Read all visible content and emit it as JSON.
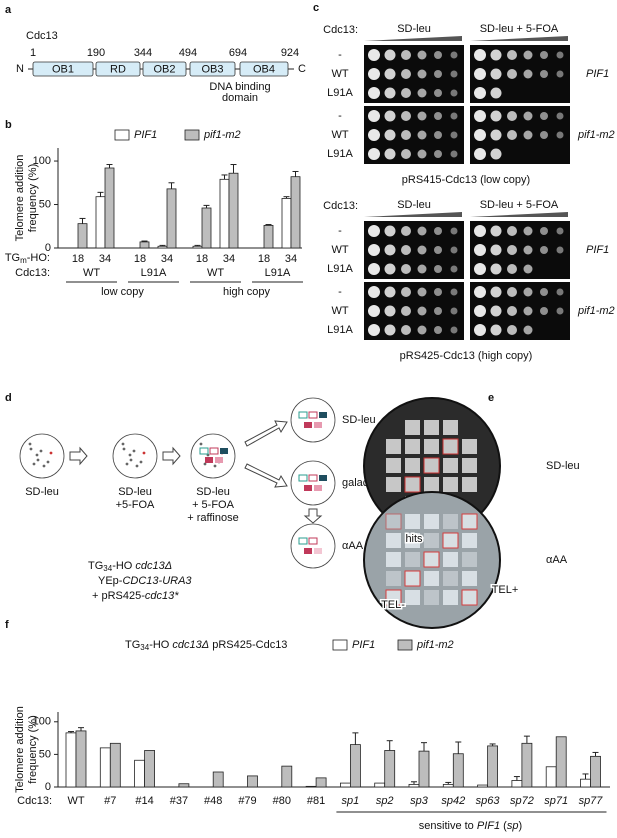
{
  "panels": {
    "a": {
      "letter": "a",
      "protein": "Cdc13",
      "n_term": "N",
      "c_term": "C",
      "positions": [
        1,
        190,
        344,
        494,
        694,
        924
      ],
      "domains": [
        "OB1",
        "RD",
        "OB2",
        "OB3",
        "OB4"
      ],
      "note": [
        "DNA binding",
        "domain"
      ]
    },
    "c": {
      "letter": "c",
      "blocks": [
        {
          "cdc13_label": "Cdc13:",
          "media": [
            "SD-leu",
            "SD-leu + 5-FOA"
          ],
          "rows": [
            "-",
            "WT",
            "L91A",
            "-",
            "WT",
            "L91A"
          ],
          "strains": [
            "PIF1",
            "pif1-m2"
          ],
          "caption": "pRS415-Cdc13 (low copy)"
        },
        {
          "cdc13_label": "Cdc13:",
          "media": [
            "SD-leu",
            "SD-leu + 5-FOA"
          ],
          "rows": [
            "-",
            "WT",
            "L91A",
            "-",
            "WT",
            "L91A"
          ],
          "strains": [
            "PIF1",
            "pif1-m2"
          ],
          "caption": "pRS425-Cdc13 (high copy)"
        }
      ]
    },
    "d": {
      "letter": "d",
      "plates": [
        [
          "SD-leu"
        ],
        [
          "SD-leu",
          "+5-FOA"
        ],
        [
          "SD-leu",
          "+ 5-FOA",
          "+ raffinose"
        ]
      ],
      "replica": [
        "SD-leu",
        "galactose",
        "αAA"
      ],
      "genotype": [
        [
          "TG",
          "34",
          "-HO ",
          "cdc13Δ"
        ],
        [
          "YEp-",
          "CDC13-URA3"
        ],
        [
          "+ pRS425-",
          "cdc13*"
        ]
      ]
    },
    "e": {
      "letter": "e",
      "plates": [
        "SD-leu",
        "αAA"
      ],
      "labels": [
        "hits",
        "TEL-",
        "TEL+"
      ]
    }
  },
  "chart_data": [
    {
      "letter": "b",
      "type": "bar",
      "categories": [
        "18",
        "34",
        "18",
        "34",
        "18",
        "34",
        "18",
        "34"
      ],
      "tg_label": [
        "TG",
        "m",
        "-HO:"
      ],
      "cdc13_label": "Cdc13:",
      "cdc13_groups": [
        "WT",
        "L91A",
        "WT",
        "L91A"
      ],
      "copy_groups": [
        "low copy",
        "high copy"
      ],
      "y_label": [
        "Telomere addition",
        "frequency (%)"
      ],
      "ylim": [
        0,
        115
      ],
      "yticks": [
        0,
        50,
        100
      ],
      "series": [
        {
          "name": "PIF1",
          "color": "#ffffff",
          "values": [
            0,
            59,
            0,
            2,
            2,
            79,
            0,
            57
          ],
          "errors": [
            null,
            5,
            null,
            1,
            1,
            5,
            null,
            2
          ]
        },
        {
          "name": "pif1-m2",
          "color": "#bdbdbd",
          "values": [
            28,
            92,
            7,
            68,
            46,
            86,
            26,
            82
          ],
          "errors": [
            6,
            4,
            1,
            7,
            3,
            10,
            1,
            6
          ]
        }
      ]
    },
    {
      "letter": "f",
      "type": "bar",
      "title": [
        "TG",
        "34",
        "-HO ",
        "cdc13Δ",
        " pRS425-Cdc13"
      ],
      "categories": [
        "WT",
        "#7",
        "#14",
        "#37",
        "#48",
        "#79",
        "#80",
        "#81",
        "sp1",
        "sp2",
        "sp3",
        "sp42",
        "sp63",
        "sp72",
        "sp71",
        "sp77"
      ],
      "cdc13_label": "Cdc13:",
      "group_note": [
        "sensitive to ",
        "PIF1",
        " (",
        "sp",
        ")"
      ],
      "y_label": [
        "Telomere addition",
        "frequency (%)"
      ],
      "ylim": [
        0,
        115
      ],
      "yticks": [
        0,
        50,
        100
      ],
      "series": [
        {
          "name": "PIF1",
          "color": "#ffffff",
          "values": [
            83,
            60,
            41,
            0,
            0,
            0,
            0,
            1,
            6,
            6,
            4,
            4,
            3,
            10,
            31,
            12
          ],
          "errors": [
            2,
            null,
            null,
            null,
            null,
            null,
            null,
            null,
            null,
            null,
            4,
            3,
            null,
            6,
            null,
            8
          ]
        },
        {
          "name": "pif1-m2",
          "color": "#bdbdbd",
          "values": [
            86,
            67,
            56,
            5,
            23,
            17,
            32,
            14,
            65,
            56,
            55,
            51,
            63,
            67,
            77,
            47
          ],
          "errors": [
            5,
            null,
            null,
            null,
            null,
            null,
            null,
            null,
            18,
            15,
            13,
            18,
            3,
            11,
            null,
            6
          ]
        }
      ]
    }
  ]
}
